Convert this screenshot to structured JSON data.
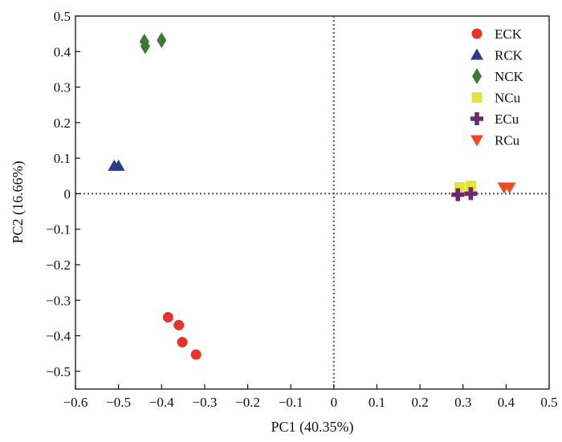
{
  "chart_data": {
    "type": "scatter",
    "title": "",
    "xlabel": "PC1 (40.35%)",
    "ylabel": "PC2 (16.66%)",
    "xlim": [
      -0.6,
      0.5
    ],
    "ylim": [
      -0.55,
      0.5
    ],
    "x_ticks": [
      -0.6,
      -0.5,
      -0.4,
      -0.3,
      -0.2,
      -0.1,
      0,
      0.1,
      0.2,
      0.3,
      0.4,
      0.5
    ],
    "x_tick_labels": [
      "−0.6",
      "−0.5",
      "−0.4",
      "−0.3",
      "−0.2",
      "−0.1",
      "0",
      "0.1",
      "0.2",
      "0.3",
      "0.4",
      "0.5"
    ],
    "y_ticks": [
      0.5,
      0.4,
      0.3,
      0.2,
      0.1,
      0,
      -0.1,
      -0.2,
      -0.3,
      -0.4,
      -0.5
    ],
    "y_tick_labels": [
      "0.5",
      "0.4",
      "0.3",
      "0.2",
      "0.1",
      "0",
      "−0.1",
      "−0.2",
      "−0.3",
      "−0.4",
      "−0.5"
    ],
    "reference_lines": {
      "x": 0,
      "y": 0,
      "style": "dotted"
    },
    "grid": false,
    "legend_position": "top-right",
    "series": [
      {
        "name": "ECK",
        "marker": "circle",
        "color": "#e8322a",
        "points": [
          [
            -0.385,
            -0.348
          ],
          [
            -0.36,
            -0.37
          ],
          [
            -0.352,
            -0.418
          ],
          [
            -0.32,
            -0.453
          ]
        ]
      },
      {
        "name": "RCK",
        "marker": "triangle-up",
        "color": "#2a3a8f",
        "points": [
          [
            -0.51,
            0.078
          ],
          [
            -0.5,
            0.078
          ]
        ]
      },
      {
        "name": "NCK",
        "marker": "diamond",
        "color": "#3c7a33",
        "points": [
          [
            -0.44,
            0.428
          ],
          [
            -0.438,
            0.415
          ],
          [
            -0.4,
            0.432
          ]
        ]
      },
      {
        "name": "NCu",
        "marker": "square",
        "color": "#e3e33c",
        "points": [
          [
            0.292,
            0.018
          ],
          [
            0.318,
            0.022
          ]
        ]
      },
      {
        "name": "ECu",
        "marker": "cross",
        "color": "#6b2a6e",
        "points": [
          [
            0.288,
            -0.003
          ],
          [
            0.318,
            0.0
          ]
        ]
      },
      {
        "name": "RCu",
        "marker": "triangle-down",
        "color": "#f04a24",
        "points": [
          [
            0.395,
            0.018
          ],
          [
            0.408,
            0.018
          ]
        ]
      }
    ]
  }
}
